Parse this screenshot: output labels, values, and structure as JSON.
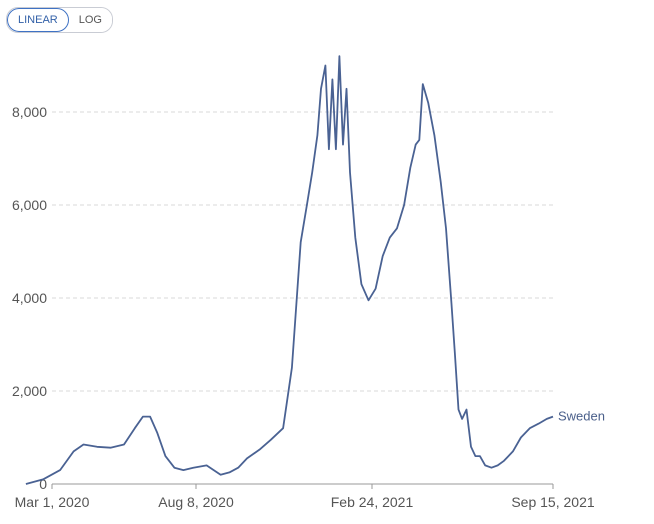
{
  "toolbar": {
    "scale_options": [
      "LINEAR",
      "LOG"
    ],
    "active_scale": "LINEAR"
  },
  "colors": {
    "line": "#4a6293",
    "grid": "#d9d9d9",
    "active": "#3f72c4"
  },
  "chart_data": {
    "type": "line",
    "title": "",
    "xlabel": "",
    "ylabel": "",
    "ylim": [
      0,
      9000
    ],
    "y_ticks": [
      0,
      2000,
      4000,
      6000,
      8000
    ],
    "y_tick_labels": [
      "0",
      "2,000",
      "4,000",
      "6,000",
      "8,000"
    ],
    "x_tick_labels": [
      "Mar 1, 2020",
      "Aug 8, 2020",
      "Feb 24, 2021",
      "Sep 15, 2021"
    ],
    "x_tick_dates": [
      "2020-03-01",
      "2020-08-08",
      "2021-02-24",
      "2021-09-15"
    ],
    "grid": true,
    "series": [
      {
        "name": "Sweden",
        "x": [
          "2020-02-01",
          "2020-02-20",
          "2020-03-10",
          "2020-03-25",
          "2020-04-05",
          "2020-04-20",
          "2020-05-05",
          "2020-05-20",
          "2020-06-01",
          "2020-06-10",
          "2020-06-18",
          "2020-06-26",
          "2020-07-05",
          "2020-07-15",
          "2020-07-25",
          "2020-08-05",
          "2020-08-20",
          "2020-09-05",
          "2020-09-15",
          "2020-09-25",
          "2020-10-05",
          "2020-10-20",
          "2020-11-01",
          "2020-11-15",
          "2020-11-25",
          "2020-12-05",
          "2020-12-12",
          "2020-12-18",
          "2020-12-24",
          "2020-12-28",
          "2021-01-02",
          "2021-01-06",
          "2021-01-10",
          "2021-01-14",
          "2021-01-18",
          "2021-01-22",
          "2021-01-26",
          "2021-01-30",
          "2021-02-05",
          "2021-02-12",
          "2021-02-20",
          "2021-02-28",
          "2021-03-08",
          "2021-03-16",
          "2021-03-24",
          "2021-04-01",
          "2021-04-08",
          "2021-04-14",
          "2021-04-18",
          "2021-04-22",
          "2021-04-28",
          "2021-05-05",
          "2021-05-12",
          "2021-05-18",
          "2021-05-24",
          "2021-05-28",
          "2021-06-01",
          "2021-06-05",
          "2021-06-10",
          "2021-06-15",
          "2021-06-20",
          "2021-06-25",
          "2021-07-01",
          "2021-07-08",
          "2021-07-15",
          "2021-07-22",
          "2021-08-01",
          "2021-08-10",
          "2021-08-20",
          "2021-08-30",
          "2021-09-08",
          "2021-09-15"
        ],
        "y": [
          0,
          100,
          300,
          700,
          850,
          800,
          780,
          850,
          1200,
          1450,
          1450,
          1100,
          600,
          350,
          300,
          350,
          400,
          200,
          250,
          350,
          550,
          750,
          950,
          1200,
          2500,
          5200,
          6000,
          6700,
          7500,
          8500,
          9000,
          7200,
          8700,
          7200,
          9200,
          7300,
          8500,
          6700,
          5300,
          4300,
          3950,
          4200,
          4900,
          5300,
          5500,
          6000,
          6800,
          7300,
          7400,
          8600,
          8200,
          7500,
          6500,
          5500,
          3900,
          2800,
          1600,
          1400,
          1600,
          800,
          600,
          600,
          400,
          350,
          400,
          500,
          700,
          1000,
          1200,
          1300,
          1400,
          1450
        ]
      }
    ]
  }
}
